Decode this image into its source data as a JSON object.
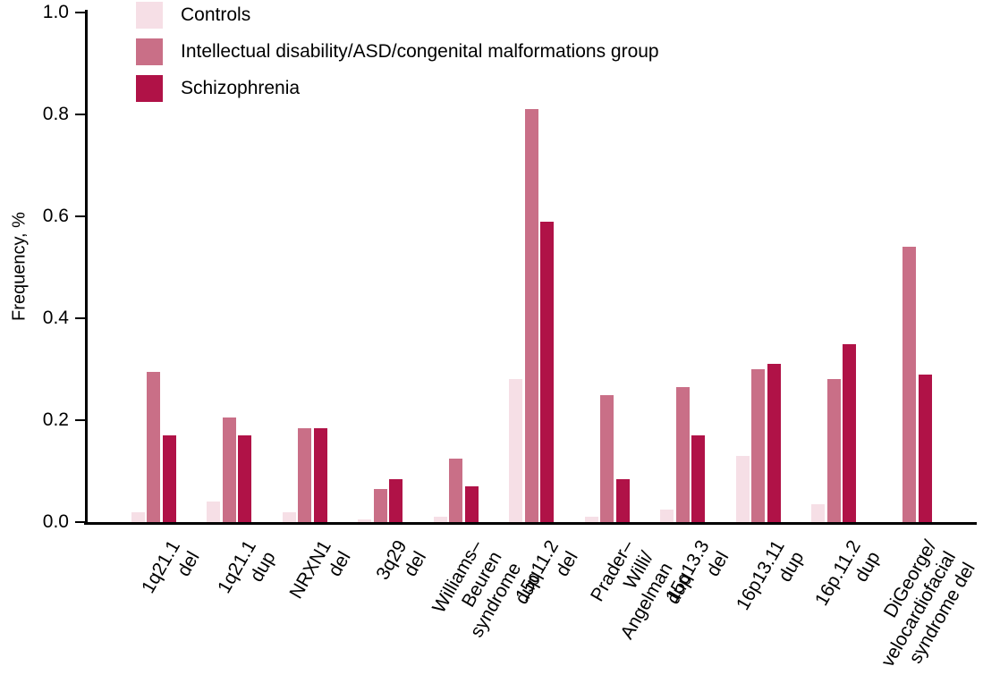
{
  "chart_data": {
    "type": "bar",
    "title": "",
    "ylabel": "Frequency, %",
    "ylim": [
      0,
      1.0
    ],
    "yticks": [
      "0.0",
      "0.2",
      "0.4",
      "0.6",
      "0.8",
      "1.0"
    ],
    "grid": false,
    "legend_position": "top-left",
    "axis_color": "#000000",
    "categories": [
      "1q21.1 del",
      "1q21.1 dup",
      "NRXN1 del",
      "3q29 del",
      "Williams–Beuren\nsyndrome dup",
      "15q11.2 del",
      "Prader–Willi/\nAngelman dup",
      "15q13.3 del",
      "16p13.11 dup",
      "16p.11.2 dup",
      "DiGeorge/\nvelocardiofacial\nsyndrome del"
    ],
    "series": [
      {
        "name": "Controls",
        "color": "#f6dfe6",
        "values": [
          0.02,
          0.04,
          0.02,
          0.005,
          0.01,
          0.28,
          0.01,
          0.025,
          0.13,
          0.035,
          0.0
        ]
      },
      {
        "name": "Intellectual disability/ASD/congenital malformations group",
        "color": "#c96f87",
        "values": [
          0.295,
          0.205,
          0.185,
          0.065,
          0.125,
          0.81,
          0.25,
          0.265,
          0.3,
          0.28,
          0.54
        ]
      },
      {
        "name": "Schizophrenia",
        "color": "#b01247",
        "values": [
          0.17,
          0.17,
          0.185,
          0.085,
          0.07,
          0.59,
          0.085,
          0.17,
          0.31,
          0.35,
          0.29
        ]
      }
    ]
  }
}
